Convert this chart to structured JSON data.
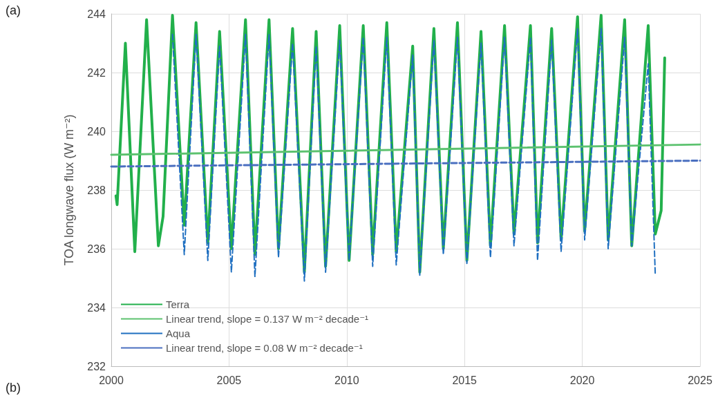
{
  "chart_data": {
    "type": "line",
    "ylabel": "TOA longwave flux (W m⁻²)",
    "annotations": [
      "(a)",
      "(b)"
    ],
    "xlim": [
      2000,
      2025
    ],
    "xticks": [
      2000,
      2005,
      2010,
      2015,
      2020,
      2025
    ],
    "ylim": [
      232,
      244
    ],
    "yticks": [
      232,
      234,
      236,
      238,
      240,
      242,
      244
    ],
    "grid": true,
    "legend": "bottom left",
    "marker": "none",
    "series": [
      {
        "name": "Terra",
        "color": "#22b04b",
        "line_style": "solid",
        "x": [
          2000.2,
          2000.25,
          2000.6,
          2001.0,
          2001.5,
          2002.0,
          2002.2,
          2002.6,
          2003.1,
          2003.6,
          2004.1,
          2004.6,
          2005.1,
          2005.7,
          2006.1,
          2006.7,
          2007.1,
          2007.7,
          2008.2,
          2008.7,
          2009.1,
          2009.7,
          2010.1,
          2010.7,
          2011.1,
          2011.7,
          2012.1,
          2012.8,
          2013.1,
          2013.7,
          2014.1,
          2014.7,
          2015.1,
          2015.7,
          2016.1,
          2016.7,
          2017.1,
          2017.8,
          2018.1,
          2018.7,
          2019.1,
          2019.8,
          2020.1,
          2020.8,
          2021.1,
          2021.8,
          2022.1,
          2022.8,
          2023.1,
          2023.35,
          2023.5
        ],
        "values": [
          237.8,
          237.5,
          243.0,
          235.9,
          243.8,
          236.1,
          237.1,
          243.95,
          236.8,
          243.7,
          236.2,
          243.4,
          236.0,
          243.8,
          235.8,
          243.8,
          236.0,
          243.5,
          235.2,
          243.4,
          235.4,
          243.6,
          235.6,
          243.6,
          235.8,
          243.7,
          235.9,
          242.9,
          235.2,
          243.5,
          236.0,
          243.7,
          235.6,
          243.4,
          236.1,
          243.6,
          236.5,
          243.6,
          236.2,
          243.5,
          236.3,
          243.9,
          236.6,
          243.95,
          236.3,
          243.8,
          236.1,
          243.6,
          236.5,
          237.3,
          242.5
        ]
      },
      {
        "name": "Linear trend, slope = 0.137 W m⁻² decade⁻¹",
        "color": "#5cc26f",
        "line_style": "solid",
        "x": [
          2000,
          2025
        ],
        "values": [
          239.2,
          239.55
        ]
      },
      {
        "name": "Aqua",
        "color": "#1f6fc0",
        "line_style": "dashed",
        "x": [
          2002.6,
          2003.1,
          2003.6,
          2004.1,
          2004.6,
          2005.1,
          2005.7,
          2006.1,
          2006.7,
          2007.1,
          2007.7,
          2008.2,
          2008.7,
          2009.1,
          2009.7,
          2010.1,
          2010.7,
          2011.1,
          2011.7,
          2012.1,
          2012.8,
          2013.1,
          2013.7,
          2014.1,
          2014.7,
          2015.1,
          2015.7,
          2016.1,
          2016.7,
          2017.1,
          2017.8,
          2018.1,
          2018.7,
          2019.1,
          2019.8,
          2020.1,
          2020.8,
          2021.1,
          2021.8,
          2022.1,
          2022.8,
          2023.1
        ],
        "values": [
          243.3,
          235.8,
          243.3,
          235.6,
          242.9,
          235.2,
          243.3,
          235.05,
          243.3,
          235.7,
          243.0,
          234.9,
          242.9,
          235.2,
          243.1,
          235.6,
          243.2,
          235.4,
          243.2,
          235.45,
          242.6,
          235.1,
          243.1,
          235.8,
          243.2,
          235.5,
          243.0,
          235.7,
          243.2,
          236.1,
          243.2,
          235.6,
          243.1,
          235.9,
          243.5,
          236.3,
          243.5,
          236.0,
          243.2,
          236.1,
          242.3,
          235.1
        ]
      },
      {
        "name": "Linear trend, slope = 0.08 W m⁻² decade⁻¹",
        "color": "#4a6fc0",
        "line_style": "dashed",
        "x": [
          2000,
          2025
        ],
        "values": [
          238.8,
          239.0
        ]
      }
    ]
  }
}
